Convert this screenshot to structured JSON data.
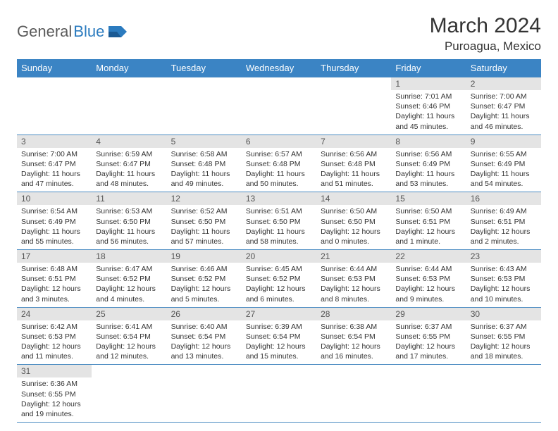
{
  "logo": {
    "general": "General",
    "blue": "Blue"
  },
  "title": "March 2024",
  "location": "Puroagua, Mexico",
  "colors": {
    "header_bg": "#3b84c4",
    "header_text": "#ffffff",
    "daynum_bg": "#e4e4e4",
    "daynum_text": "#555555",
    "body_text": "#333333",
    "border": "#4a8bc2",
    "logo_gray": "#5a5a5a",
    "logo_blue": "#2b7bbf"
  },
  "day_headers": [
    "Sunday",
    "Monday",
    "Tuesday",
    "Wednesday",
    "Thursday",
    "Friday",
    "Saturday"
  ],
  "weeks": [
    [
      {
        "empty": true
      },
      {
        "empty": true
      },
      {
        "empty": true
      },
      {
        "empty": true
      },
      {
        "empty": true
      },
      {
        "num": "1",
        "sunrise": "Sunrise: 7:01 AM",
        "sunset": "Sunset: 6:46 PM",
        "daylight": "Daylight: 11 hours and 45 minutes."
      },
      {
        "num": "2",
        "sunrise": "Sunrise: 7:00 AM",
        "sunset": "Sunset: 6:47 PM",
        "daylight": "Daylight: 11 hours and 46 minutes."
      }
    ],
    [
      {
        "num": "3",
        "sunrise": "Sunrise: 7:00 AM",
        "sunset": "Sunset: 6:47 PM",
        "daylight": "Daylight: 11 hours and 47 minutes."
      },
      {
        "num": "4",
        "sunrise": "Sunrise: 6:59 AM",
        "sunset": "Sunset: 6:47 PM",
        "daylight": "Daylight: 11 hours and 48 minutes."
      },
      {
        "num": "5",
        "sunrise": "Sunrise: 6:58 AM",
        "sunset": "Sunset: 6:48 PM",
        "daylight": "Daylight: 11 hours and 49 minutes."
      },
      {
        "num": "6",
        "sunrise": "Sunrise: 6:57 AM",
        "sunset": "Sunset: 6:48 PM",
        "daylight": "Daylight: 11 hours and 50 minutes."
      },
      {
        "num": "7",
        "sunrise": "Sunrise: 6:56 AM",
        "sunset": "Sunset: 6:48 PM",
        "daylight": "Daylight: 11 hours and 51 minutes."
      },
      {
        "num": "8",
        "sunrise": "Sunrise: 6:56 AM",
        "sunset": "Sunset: 6:49 PM",
        "daylight": "Daylight: 11 hours and 53 minutes."
      },
      {
        "num": "9",
        "sunrise": "Sunrise: 6:55 AM",
        "sunset": "Sunset: 6:49 PM",
        "daylight": "Daylight: 11 hours and 54 minutes."
      }
    ],
    [
      {
        "num": "10",
        "sunrise": "Sunrise: 6:54 AM",
        "sunset": "Sunset: 6:49 PM",
        "daylight": "Daylight: 11 hours and 55 minutes."
      },
      {
        "num": "11",
        "sunrise": "Sunrise: 6:53 AM",
        "sunset": "Sunset: 6:50 PM",
        "daylight": "Daylight: 11 hours and 56 minutes."
      },
      {
        "num": "12",
        "sunrise": "Sunrise: 6:52 AM",
        "sunset": "Sunset: 6:50 PM",
        "daylight": "Daylight: 11 hours and 57 minutes."
      },
      {
        "num": "13",
        "sunrise": "Sunrise: 6:51 AM",
        "sunset": "Sunset: 6:50 PM",
        "daylight": "Daylight: 11 hours and 58 minutes."
      },
      {
        "num": "14",
        "sunrise": "Sunrise: 6:50 AM",
        "sunset": "Sunset: 6:50 PM",
        "daylight": "Daylight: 12 hours and 0 minutes."
      },
      {
        "num": "15",
        "sunrise": "Sunrise: 6:50 AM",
        "sunset": "Sunset: 6:51 PM",
        "daylight": "Daylight: 12 hours and 1 minute."
      },
      {
        "num": "16",
        "sunrise": "Sunrise: 6:49 AM",
        "sunset": "Sunset: 6:51 PM",
        "daylight": "Daylight: 12 hours and 2 minutes."
      }
    ],
    [
      {
        "num": "17",
        "sunrise": "Sunrise: 6:48 AM",
        "sunset": "Sunset: 6:51 PM",
        "daylight": "Daylight: 12 hours and 3 minutes."
      },
      {
        "num": "18",
        "sunrise": "Sunrise: 6:47 AM",
        "sunset": "Sunset: 6:52 PM",
        "daylight": "Daylight: 12 hours and 4 minutes."
      },
      {
        "num": "19",
        "sunrise": "Sunrise: 6:46 AM",
        "sunset": "Sunset: 6:52 PM",
        "daylight": "Daylight: 12 hours and 5 minutes."
      },
      {
        "num": "20",
        "sunrise": "Sunrise: 6:45 AM",
        "sunset": "Sunset: 6:52 PM",
        "daylight": "Daylight: 12 hours and 6 minutes."
      },
      {
        "num": "21",
        "sunrise": "Sunrise: 6:44 AM",
        "sunset": "Sunset: 6:53 PM",
        "daylight": "Daylight: 12 hours and 8 minutes."
      },
      {
        "num": "22",
        "sunrise": "Sunrise: 6:44 AM",
        "sunset": "Sunset: 6:53 PM",
        "daylight": "Daylight: 12 hours and 9 minutes."
      },
      {
        "num": "23",
        "sunrise": "Sunrise: 6:43 AM",
        "sunset": "Sunset: 6:53 PM",
        "daylight": "Daylight: 12 hours and 10 minutes."
      }
    ],
    [
      {
        "num": "24",
        "sunrise": "Sunrise: 6:42 AM",
        "sunset": "Sunset: 6:53 PM",
        "daylight": "Daylight: 12 hours and 11 minutes."
      },
      {
        "num": "25",
        "sunrise": "Sunrise: 6:41 AM",
        "sunset": "Sunset: 6:54 PM",
        "daylight": "Daylight: 12 hours and 12 minutes."
      },
      {
        "num": "26",
        "sunrise": "Sunrise: 6:40 AM",
        "sunset": "Sunset: 6:54 PM",
        "daylight": "Daylight: 12 hours and 13 minutes."
      },
      {
        "num": "27",
        "sunrise": "Sunrise: 6:39 AM",
        "sunset": "Sunset: 6:54 PM",
        "daylight": "Daylight: 12 hours and 15 minutes."
      },
      {
        "num": "28",
        "sunrise": "Sunrise: 6:38 AM",
        "sunset": "Sunset: 6:54 PM",
        "daylight": "Daylight: 12 hours and 16 minutes."
      },
      {
        "num": "29",
        "sunrise": "Sunrise: 6:37 AM",
        "sunset": "Sunset: 6:55 PM",
        "daylight": "Daylight: 12 hours and 17 minutes."
      },
      {
        "num": "30",
        "sunrise": "Sunrise: 6:37 AM",
        "sunset": "Sunset: 6:55 PM",
        "daylight": "Daylight: 12 hours and 18 minutes."
      }
    ],
    [
      {
        "num": "31",
        "sunrise": "Sunrise: 6:36 AM",
        "sunset": "Sunset: 6:55 PM",
        "daylight": "Daylight: 12 hours and 19 minutes."
      },
      {
        "empty": true
      },
      {
        "empty": true
      },
      {
        "empty": true
      },
      {
        "empty": true
      },
      {
        "empty": true
      },
      {
        "empty": true
      }
    ]
  ]
}
